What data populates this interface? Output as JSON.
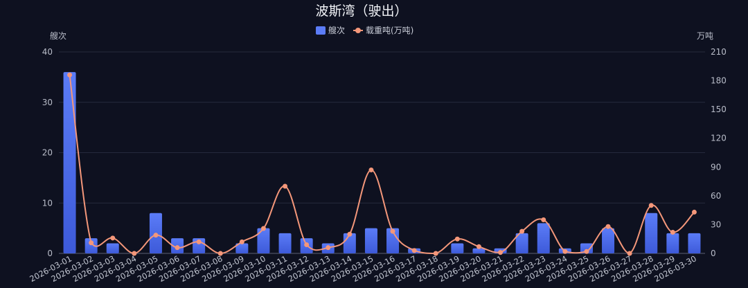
{
  "chart_data": {
    "type": "bar+line",
    "title": "波斯湾（驶出）",
    "left_axis_name": "艘次",
    "right_axis_name": "万吨",
    "left_ylim": [
      0,
      40
    ],
    "left_ticks": [
      0,
      10,
      20,
      30,
      40
    ],
    "right_ylim": [
      0,
      210
    ],
    "right_ticks": [
      0,
      30,
      60,
      90,
      120,
      150,
      180,
      210
    ],
    "grid": true,
    "legend_position": "top-center",
    "categories": [
      "2026-03-01",
      "2026-03-02",
      "2026-03-03",
      "2026-03-04",
      "2026-03-05",
      "2026-03-06",
      "2026-03-07",
      "2026-03-08",
      "2026-03-09",
      "2026-03-10",
      "2026-03-11",
      "2026-03-12",
      "2026-03-13",
      "2026-03-14",
      "2026-03-15",
      "2026-03-16",
      "2026-03-17",
      "2026-03-18",
      "2026-03-19",
      "2026-03-20",
      "2026-03-21",
      "2026-03-22",
      "2026-03-23",
      "2026-03-24",
      "2026-03-25",
      "2026-03-26",
      "2026-03-27",
      "2026-03-28",
      "2026-03-29",
      "2026-03-30"
    ],
    "series": [
      {
        "name": "艘次",
        "kind": "bar",
        "axis": "left",
        "color": "#5b7cf7",
        "values": [
          36,
          3,
          2,
          0,
          8,
          3,
          3,
          0,
          2,
          5,
          4,
          3,
          2,
          4,
          5,
          5,
          1,
          0,
          2,
          1,
          1,
          4,
          6,
          1,
          2,
          5,
          0,
          8,
          4,
          4
        ]
      },
      {
        "name": "载重吨(万吨)",
        "kind": "line",
        "axis": "right",
        "color": "#f4977a",
        "values": [
          186,
          11,
          16,
          0,
          19,
          6,
          12,
          0,
          12,
          26,
          70,
          9,
          6,
          20,
          87,
          23,
          3,
          0,
          15,
          7,
          1,
          23,
          35,
          2,
          2,
          28,
          0,
          50,
          22,
          43
        ]
      }
    ]
  }
}
